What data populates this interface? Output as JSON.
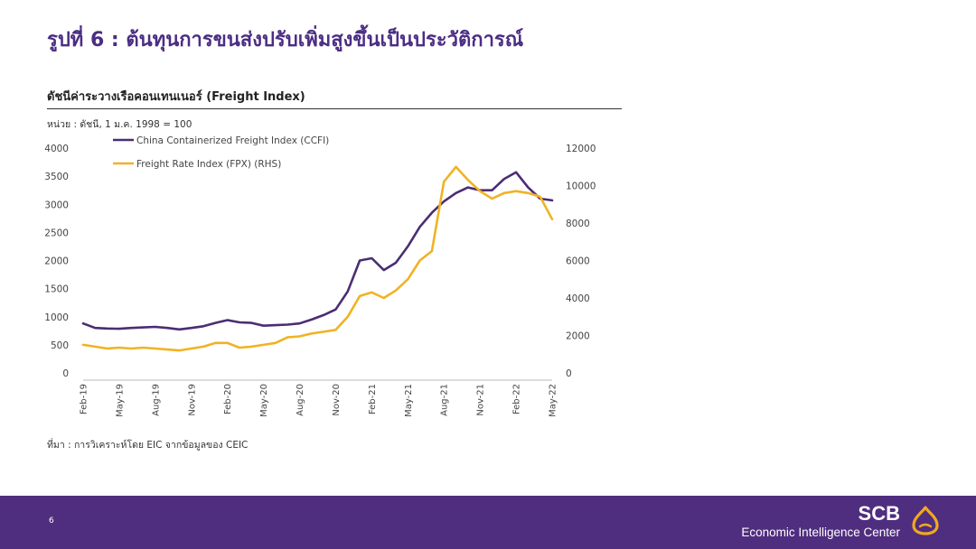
{
  "page": {
    "title": "รูปที่ 6 : ต้นทุนการขนส่งปรับเพิ่มสูงขึ้นเป็นประวัติการณ์",
    "chart_title": "ดัชนีค่าระวางเรือคอนเทนเนอร์ (Freight Index)",
    "unit_note": "หน่วย : ดัชนี, 1 ม.ค. 1998 = 100",
    "source": "ที่มา : การวิเคราะห์โดย EIC จากข้อมูลของ CEIC",
    "page_number": "6"
  },
  "footer": {
    "brand": "SCB",
    "subtitle": "Economic Intelligence Center",
    "logo_icon": "scb-bell-logo-icon"
  },
  "colors": {
    "brand_purple": "#4f2d7f",
    "ccfi_line": "#4b2d73",
    "fpx_line": "#f0b323"
  },
  "chart_data": {
    "type": "line",
    "x": [
      "Feb-19",
      "Mar-19",
      "Apr-19",
      "May-19",
      "Jun-19",
      "Jul-19",
      "Aug-19",
      "Sep-19",
      "Oct-19",
      "Nov-19",
      "Dec-19",
      "Jan-20",
      "Feb-20",
      "Mar-20",
      "Apr-20",
      "May-20",
      "Jun-20",
      "Jul-20",
      "Aug-20",
      "Sep-20",
      "Oct-20",
      "Nov-20",
      "Dec-20",
      "Jan-21",
      "Feb-21",
      "Mar-21",
      "Apr-21",
      "May-21",
      "Jun-21",
      "Jul-21",
      "Aug-21",
      "Sep-21",
      "Oct-21",
      "Nov-21",
      "Dec-21",
      "Jan-22",
      "Feb-22",
      "Mar-22",
      "Apr-22",
      "May-22"
    ],
    "x_tick_labels": [
      "Feb-19",
      "May-19",
      "Aug-19",
      "Nov-19",
      "Feb-20",
      "May-20",
      "Aug-20",
      "Nov-20",
      "Feb-21",
      "May-21",
      "Aug-21",
      "Nov-21",
      "Feb-22",
      "May-22"
    ],
    "series": [
      {
        "name": "China Containerized Freight Index (CCFI)",
        "axis": "left",
        "values": [
          880,
          800,
          790,
          785,
          800,
          810,
          820,
          800,
          775,
          800,
          830,
          890,
          940,
          900,
          890,
          840,
          850,
          860,
          880,
          950,
          1030,
          1130,
          1450,
          2000,
          2040,
          1830,
          1960,
          2250,
          2600,
          2850,
          3050,
          3200,
          3300,
          3250,
          3250,
          3450,
          3570,
          3300,
          3100,
          3070
        ]
      },
      {
        "name": "Freight Rate Index (FPX) (RHS)",
        "axis": "right",
        "values": [
          1500,
          1400,
          1300,
          1350,
          1300,
          1350,
          1300,
          1250,
          1200,
          1300,
          1400,
          1600,
          1600,
          1350,
          1400,
          1500,
          1600,
          1900,
          1950,
          2100,
          2200,
          2300,
          3000,
          4100,
          4300,
          4000,
          4400,
          5000,
          6000,
          6500,
          10200,
          11000,
          10300,
          9700,
          9300,
          9600,
          9700,
          9600,
          9400,
          8200
        ]
      }
    ],
    "y_left": {
      "ticks": [
        "0",
        "500",
        "1000",
        "1500",
        "2000",
        "2500",
        "3000",
        "3500",
        "4000"
      ],
      "min": 0,
      "max": 4000
    },
    "y_right": {
      "ticks": [
        "0",
        "2000",
        "4000",
        "6000",
        "8000",
        "10000",
        "12000"
      ],
      "min": 0,
      "max": 12000
    },
    "grid": false,
    "legend_placement": "top-left"
  }
}
